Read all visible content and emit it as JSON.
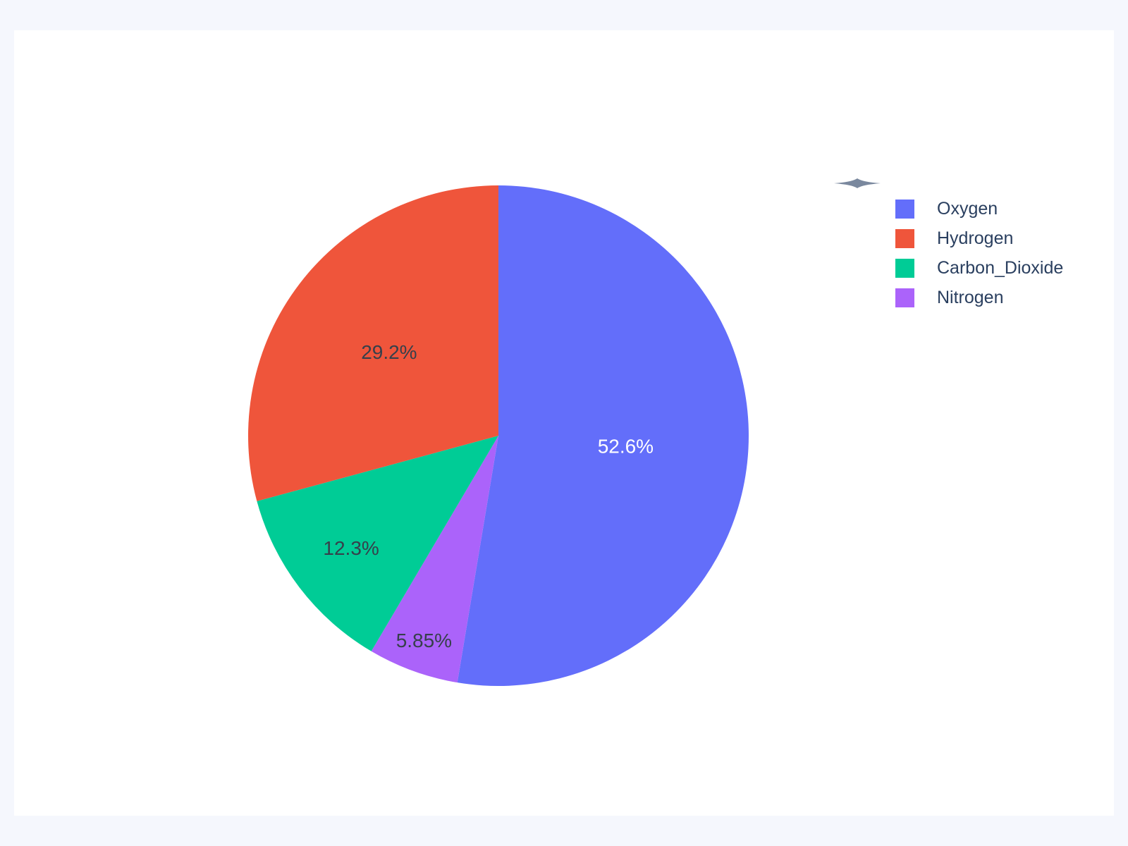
{
  "page": {
    "background_color": "#F5F7FD",
    "card_color": "#FFFFFF"
  },
  "chart_data": {
    "type": "pie",
    "title": "",
    "series": [
      {
        "name": "Oxygen",
        "value": 52.6,
        "pct_label": "52.6%",
        "color": "#636EFA",
        "label_color": "#FFFFFF",
        "label_radius": 0.51
      },
      {
        "name": "Hydrogen",
        "value": 29.2,
        "pct_label": "29.2%",
        "color": "#EF553B",
        "label_color": "#36404B",
        "label_radius": 0.55
      },
      {
        "name": "Carbon_Dioxide",
        "value": 12.3,
        "pct_label": "12.3%",
        "color": "#00CC96",
        "label_color": "#36404B",
        "label_radius": 0.74
      },
      {
        "name": "Nitrogen",
        "value": 5.85,
        "pct_label": "5.85%",
        "color": "#AB63FA",
        "label_color": "#36404B",
        "label_radius": 0.87
      }
    ],
    "layout": {
      "legend_position": "top-right",
      "legend_order": [
        "Oxygen",
        "Hydrogen",
        "Carbon_Dioxide",
        "Nitrogen"
      ],
      "clockwise_order_from_top": [
        "Oxygen",
        "Nitrogen",
        "Carbon_Dioxide",
        "Hydrogen"
      ],
      "labels_inside": true,
      "start_angle_deg": 0
    }
  },
  "decoration": {
    "diamond_color": "#7A889E"
  }
}
